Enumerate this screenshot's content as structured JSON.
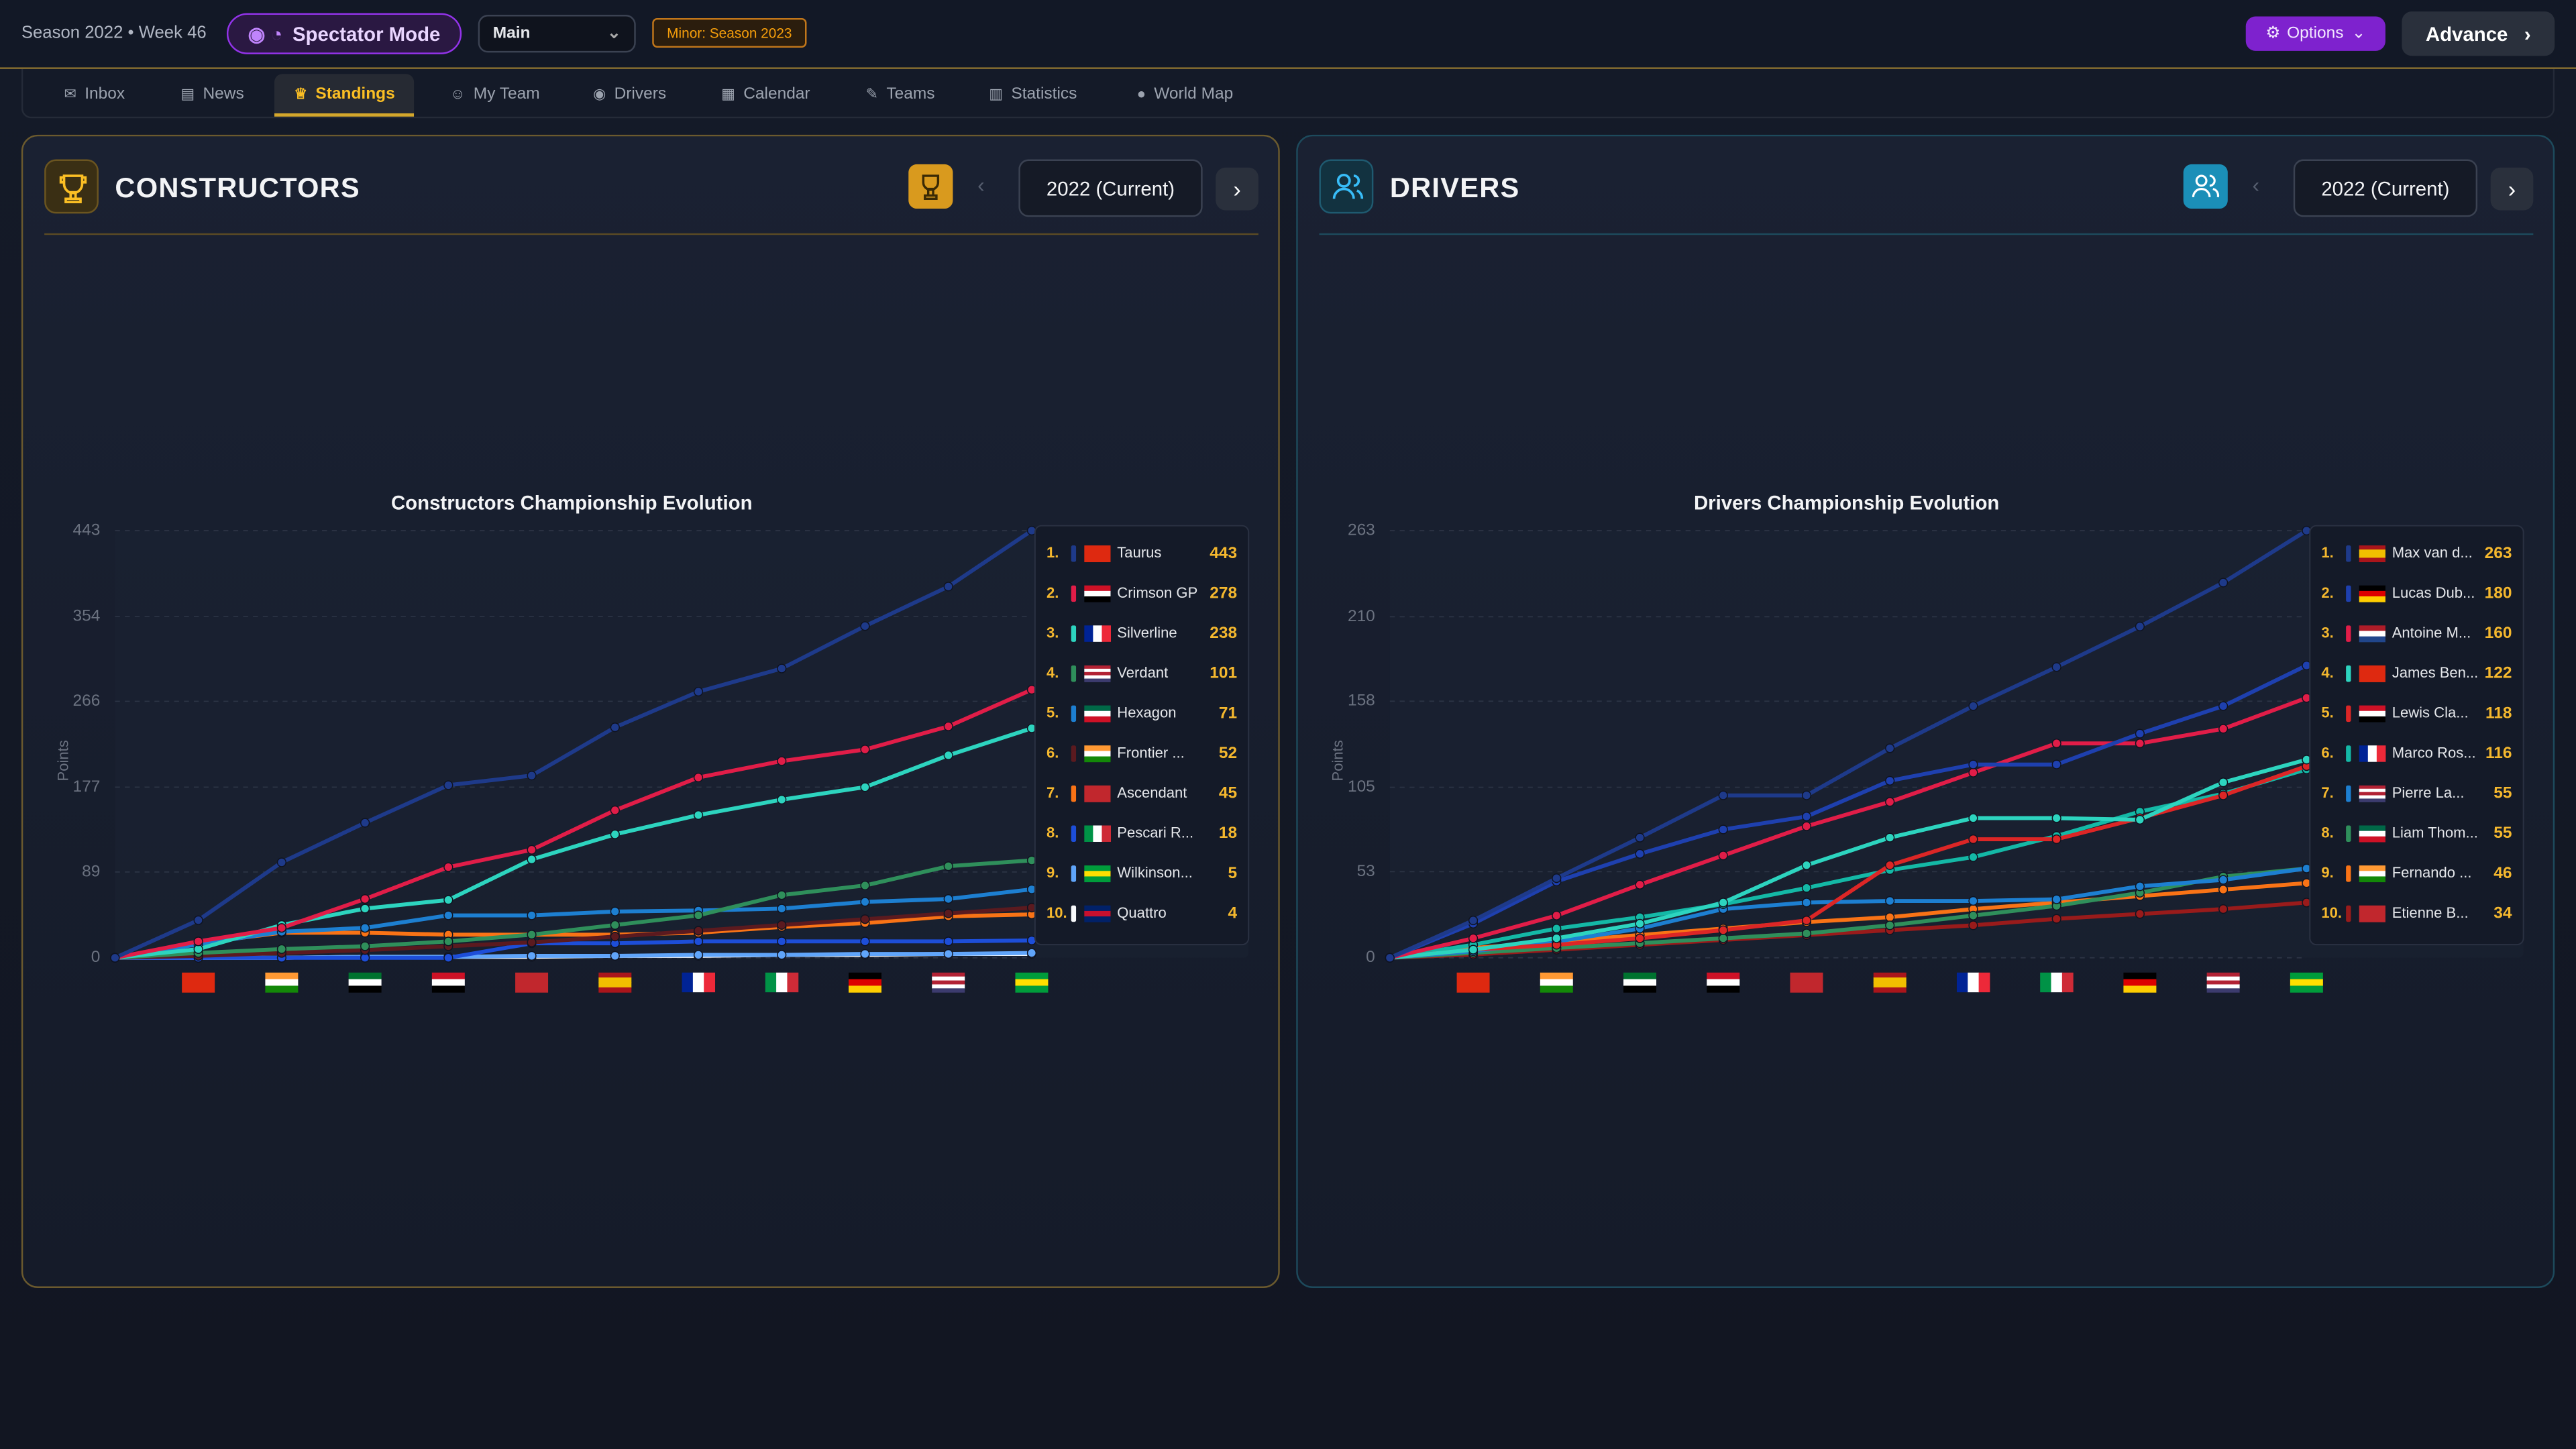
{
  "header": {
    "season": "Season 2022 • Week 46",
    "mode": "Spectator Mode",
    "save": "Main",
    "badge": "Minor: Season 2023",
    "options": "Options",
    "advance": "Advance"
  },
  "tabs": [
    "Inbox",
    "News",
    "Standings",
    "My Team",
    "Drivers",
    "Calendar",
    "Teams",
    "Statistics",
    "World Map"
  ],
  "panels": [
    {
      "title": "CONSTRUCTORS",
      "season": "2022 (Current)"
    },
    {
      "title": "DRIVERS",
      "season": "2022 (Current)"
    }
  ],
  "chart_data": [
    {
      "type": "line",
      "title": "Constructors Championship Evolution",
      "y_label": "Points",
      "categories": [
        null,
        null,
        null,
        null,
        null,
        null,
        null,
        null,
        null,
        null,
        null,
        null
      ],
      "ylim": [
        0,
        443
      ],
      "yticks": [
        0,
        89,
        177,
        266,
        354,
        443
      ],
      "grid": true,
      "series": [
        {
          "rank": "1.",
          "name": "Taurus",
          "color": "#1e3a8a",
          "values": [
            0,
            39,
            99,
            140,
            179,
            189,
            239,
            276,
            300,
            344,
            385,
            443
          ]
        },
        {
          "rank": "2.",
          "name": "Crimson GP",
          "color": "#e11d48",
          "values": [
            0,
            17,
            31,
            61,
            94,
            112,
            153,
            187,
            204,
            216,
            240,
            278
          ]
        },
        {
          "rank": "3.",
          "name": "Silverline",
          "color": "#2dd4bf",
          "values": [
            0,
            9,
            34,
            51,
            60,
            102,
            128,
            148,
            164,
            177,
            210,
            238
          ]
        },
        {
          "rank": "4.",
          "name": "Verdant",
          "color": "#2f8f5b",
          "values": [
            0,
            5,
            9,
            12,
            17,
            24,
            34,
            44,
            65,
            75,
            95,
            101
          ]
        },
        {
          "rank": "5.",
          "name": "Hexagon",
          "color": "#1d7fd1",
          "values": [
            0,
            14,
            27,
            31,
            44,
            44,
            48,
            49,
            51,
            58,
            61,
            71
          ]
        },
        {
          "rank": "6.",
          "name": "Frontier ...",
          "color": "#5b1a1f",
          "values": [
            0,
            2,
            5,
            8,
            12,
            16,
            22,
            28,
            34,
            40,
            46,
            52
          ]
        },
        {
          "rank": "7.",
          "name": "Ascendant",
          "color": "#f97316",
          "values": [
            0,
            15,
            26,
            26,
            24,
            24,
            24,
            26,
            32,
            36,
            43,
            45
          ]
        },
        {
          "rank": "8.",
          "name": "Pescari R...",
          "color": "#1d4ed8",
          "values": [
            0,
            0,
            0,
            0,
            0,
            15,
            15,
            17,
            17,
            17,
            17,
            18
          ]
        },
        {
          "rank": "9.",
          "name": "Wilkinson...",
          "color": "#60a5fa",
          "values": [
            0,
            0,
            0,
            1,
            1,
            2,
            2,
            3,
            3,
            4,
            4,
            5
          ]
        },
        {
          "rank": "10.",
          "name": "Quattro",
          "color": "#f8fafc",
          "values": [
            0,
            0,
            0,
            1,
            1,
            1,
            2,
            2,
            3,
            3,
            4,
            4
          ]
        }
      ]
    },
    {
      "type": "line",
      "title": "Drivers Championship Evolution",
      "y_label": "Points",
      "categories": [
        null,
        null,
        null,
        null,
        null,
        null,
        null,
        null,
        null,
        null,
        null,
        null
      ],
      "ylim": [
        0,
        263
      ],
      "yticks": [
        0,
        53,
        105,
        158,
        210,
        263
      ],
      "grid": true,
      "series": [
        {
          "rank": "1.",
          "name": "Max van d...",
          "color": "#1e3a8a",
          "values": [
            0,
            23,
            49,
            74,
            100,
            100,
            129,
            155,
            179,
            204,
            231,
            263
          ]
        },
        {
          "rank": "2.",
          "name": "Lucas Dub...",
          "color": "#1e40af",
          "values": [
            0,
            21,
            47,
            64,
            79,
            87,
            109,
            119,
            119,
            138,
            155,
            180
          ]
        },
        {
          "rank": "3.",
          "name": "Antoine M...",
          "color": "#e11d48",
          "values": [
            0,
            12,
            26,
            45,
            63,
            81,
            96,
            114,
            132,
            132,
            141,
            160
          ]
        },
        {
          "rank": "4.",
          "name": "James Ben...",
          "color": "#2dd4bf",
          "values": [
            0,
            5,
            12,
            21,
            34,
            57,
            74,
            86,
            86,
            85,
            108,
            122
          ]
        },
        {
          "rank": "5.",
          "name": "Lewis Cla...",
          "color": "#dc2626",
          "values": [
            0,
            5,
            8,
            12,
            17,
            23,
            57,
            73,
            73,
            86,
            100,
            118
          ]
        },
        {
          "rank": "6.",
          "name": "Marco Ros...",
          "color": "#14b8a6",
          "values": [
            0,
            8,
            18,
            25,
            33,
            43,
            54,
            62,
            75,
            90,
            101,
            116
          ]
        },
        {
          "rank": "7.",
          "name": "Pierre La...",
          "color": "#1d7fd1",
          "values": [
            0,
            4,
            10,
            18,
            30,
            34,
            35,
            35,
            36,
            44,
            48,
            55
          ]
        },
        {
          "rank": "8.",
          "name": "Liam Thom...",
          "color": "#2f8f5b",
          "values": [
            0,
            3,
            6,
            9,
            12,
            15,
            20,
            26,
            32,
            40,
            50,
            55
          ]
        },
        {
          "rank": "9.",
          "name": "Fernando ...",
          "color": "#f97316",
          "values": [
            0,
            6,
            10,
            14,
            18,
            22,
            25,
            30,
            34,
            38,
            42,
            46
          ]
        },
        {
          "rank": "10.",
          "name": "Etienne B...",
          "color": "#991b1b",
          "values": [
            0,
            2,
            5,
            8,
            11,
            14,
            17,
            20,
            24,
            27,
            30,
            34
          ]
        }
      ]
    }
  ]
}
